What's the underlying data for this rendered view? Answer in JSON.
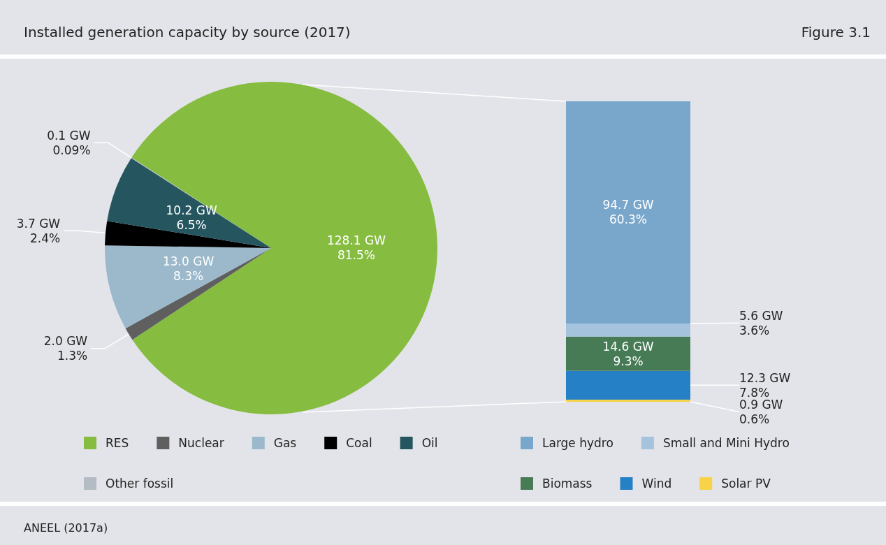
{
  "chart_data": [
    {
      "type": "pie",
      "title": "Installed generation capacity by source (2017)",
      "annotations": [
        "Figure 3.1",
        "ANEEL (2017a)"
      ],
      "categories": [
        "RES",
        "Nuclear",
        "Gas",
        "Coal",
        "Oil",
        "Other fossil"
      ],
      "values": [
        128.1,
        2.0,
        13.0,
        3.7,
        10.2,
        0.1
      ],
      "value_labels": [
        "128.1 GW\n81.5%",
        "2.0 GW\n1.3%",
        "13.0 GW\n8.3%",
        "3.7 GW\n2.4%",
        "10.2 GW\n6.5%",
        "0.1 GW\n0.09%"
      ],
      "colors": [
        "#86bc40",
        "#5f5f5f",
        "#9bb9cb",
        "#000000",
        "#255660",
        "#b3bcc3"
      ],
      "legend": "bottom"
    },
    {
      "type": "bar",
      "stacked": true,
      "categories": [
        null
      ],
      "legend": "bottom",
      "series": [
        {
          "name": "Solar PV",
          "color": "#f8d349",
          "values": [
            0.9
          ],
          "value_labels": [
            "0.9 GW\n0.6%"
          ]
        },
        {
          "name": "Wind",
          "color": "#2680c6",
          "values": [
            12.3
          ],
          "value_labels": [
            "12.3 GW\n7.8%"
          ]
        },
        {
          "name": "Biomass",
          "color": "#467b56",
          "values": [
            14.6
          ],
          "value_labels": [
            "14.6 GW\n9.3%"
          ]
        },
        {
          "name": "Small and Mini Hydro",
          "color": "#a5c3dd",
          "values": [
            5.6
          ],
          "value_labels": [
            "5.6 GW\n3.6%"
          ]
        },
        {
          "name": "Large hydro",
          "color": "#79a7cc",
          "values": [
            94.7
          ],
          "value_labels": [
            "94.7 GW\n60.3%"
          ]
        }
      ]
    }
  ]
}
